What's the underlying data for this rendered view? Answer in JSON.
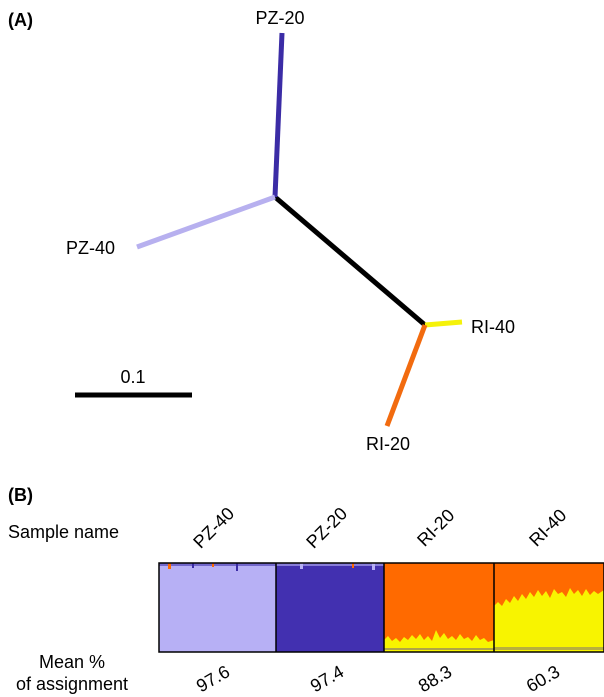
{
  "panel_a": {
    "label": "(A)",
    "scale_label": "0.1",
    "tips": [
      {
        "name": "PZ-20",
        "color": "#3b2ca6"
      },
      {
        "name": "PZ-40",
        "color": "#b7b0ef"
      },
      {
        "name": "RI-40",
        "color": "#f5f20a"
      },
      {
        "name": "RI-20",
        "color": "#f26b0f"
      }
    ],
    "internal_branch_color": "#000000"
  },
  "panel_b": {
    "label": "(B)",
    "row_sample": "Sample name",
    "row_mean_line1": "Mean %",
    "row_mean_line2": "of assignment",
    "populations": [
      {
        "name": "PZ-40",
        "mean": "97.6",
        "main_color": "#b7b0f5",
        "minor_color": "#3b2ca6"
      },
      {
        "name": "PZ-20",
        "mean": "97.4",
        "main_color": "#4230b0",
        "minor_color": "#b7b0f5"
      },
      {
        "name": "RI-20",
        "mean": "88.3",
        "main_color": "#ff6a00",
        "minor_color": "#f8f400"
      },
      {
        "name": "RI-40",
        "mean": "60.3",
        "main_color": "#f8f400",
        "minor_color": "#ff6a00"
      }
    ]
  }
}
